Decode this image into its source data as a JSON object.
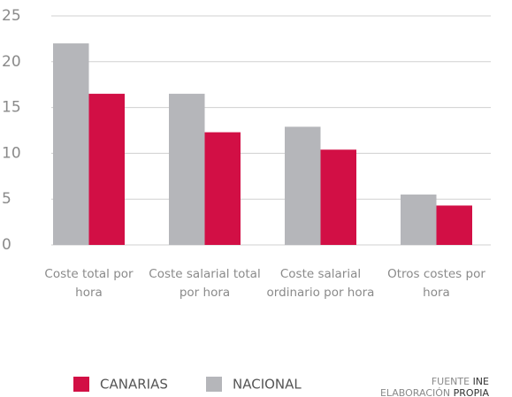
{
  "chart_data": {
    "type": "bar",
    "categories": [
      "Coste total por hora",
      "Coste salarial total por hora",
      "Coste salarial ordinario por hora",
      "Otros costes por hora"
    ],
    "series": [
      {
        "name": "CANARIAS",
        "color": "#d20f45",
        "values": [
          16.5,
          12.3,
          10.4,
          4.3
        ]
      },
      {
        "name": "NACIONAL",
        "color": "#b5b6ba",
        "values": [
          22,
          16.5,
          12.9,
          5.5
        ]
      }
    ],
    "ylim": [
      0,
      25
    ],
    "yticks": [
      0,
      5,
      10,
      15,
      20,
      25
    ],
    "grid": true,
    "source": {
      "label": "FUENTE",
      "value": "INE"
    },
    "note": {
      "label": "ELABORACIÓN",
      "value": "PROPIA"
    }
  }
}
